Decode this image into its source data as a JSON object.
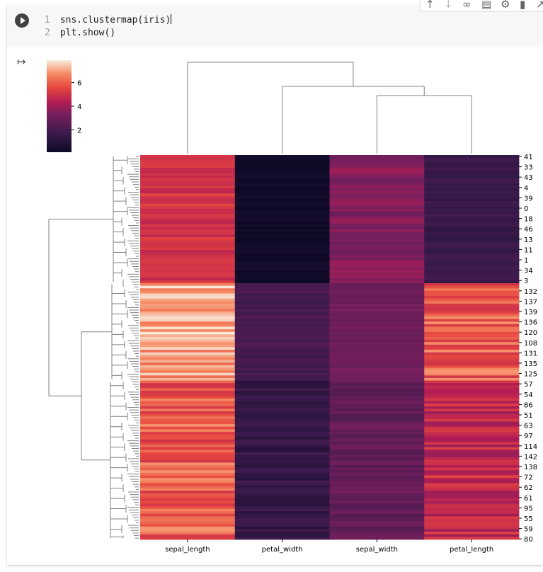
{
  "cell": {
    "code_lines": [
      {
        "num": "1",
        "text": "sns.clustermap(iris)"
      },
      {
        "num": "2",
        "text": "plt.show()"
      }
    ]
  },
  "toolbar": {
    "icons": [
      "arrow-up-icon",
      "arrow-down-icon",
      "link-icon",
      "comment-icon",
      "gear-icon",
      "trash-icon",
      "expand-icon"
    ]
  },
  "colors": {
    "code_bg": "#f7f7f7",
    "row_dendro": "#808080"
  },
  "chart_data": {
    "type": "heatmap",
    "title": "",
    "columns": [
      "sepal_length",
      "petal_width",
      "sepal_width",
      "petal_length"
    ],
    "row_labels": [
      "41",
      "33",
      "43",
      "4",
      "39",
      "0",
      "18",
      "46",
      "13",
      "11",
      "1",
      "34",
      "3",
      "132",
      "137",
      "139",
      "136",
      "120",
      "108",
      "131",
      "135",
      "125",
      "57",
      "54",
      "86",
      "51",
      "63",
      "97",
      "114",
      "142",
      "138",
      "72",
      "62",
      "61",
      "95",
      "55",
      "59",
      "80"
    ],
    "colorbar": {
      "ticks": [
        2,
        4,
        6
      ],
      "min": 0.1,
      "max": 7.9
    },
    "column_dendrogram": "sepal_length | (petal_width | (sepal_width | petal_length))",
    "row_count": 150
  }
}
